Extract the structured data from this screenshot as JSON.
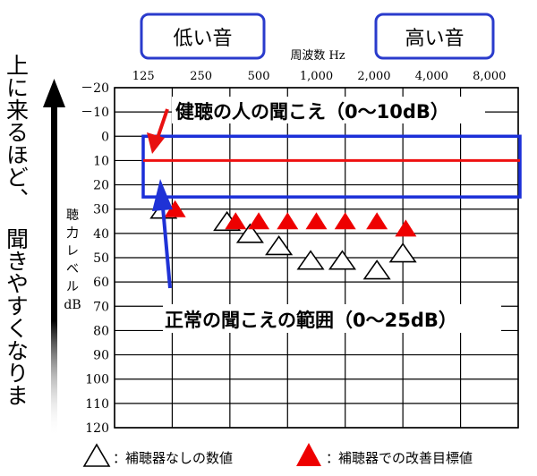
{
  "chart_data": {
    "type": "scatter",
    "x_axis_title": "周波数 Hz",
    "y_axis_title": [
      "聴",
      "力",
      "レ",
      "ベ",
      "ル",
      "dB"
    ],
    "x_categories": [
      "125",
      "250",
      "500",
      "1,000",
      "2,000",
      "4,000",
      "8,000"
    ],
    "y_ticks": [
      "－20",
      "－10",
      "0",
      "10",
      "20",
      "30",
      "40",
      "50",
      "60",
      "70",
      "80",
      "90",
      "100",
      "110",
      "120"
    ],
    "ylim": [
      -20,
      120
    ],
    "y_inverted": true,
    "grid": true,
    "low_label": "低い音",
    "high_label": "高い音",
    "side_label_top": "上に来るほど、",
    "side_label_bottom": "聞きやすくなりま",
    "normal_hearing_label": "健聴の人の聞こえ（0〜10dB）",
    "normal_hearing_level": 10,
    "normal_range_label": "正常の聞こえの範囲（0〜25dB）",
    "normal_range": [
      0,
      25
    ],
    "series": [
      {
        "name": "補聴器なしの数値",
        "marker": "triangle-open",
        "color": "#000000",
        "points": [
          {
            "x": 0.85,
            "y": 30
          },
          {
            "x": 1.95,
            "y": 35
          },
          {
            "x": 2.35,
            "y": 40
          },
          {
            "x": 2.85,
            "y": 45
          },
          {
            "x": 3.4,
            "y": 51
          },
          {
            "x": 3.95,
            "y": 51
          },
          {
            "x": 4.55,
            "y": 55
          },
          {
            "x": 5.0,
            "y": 48
          }
        ]
      },
      {
        "name": "補聴器での改善目標値",
        "marker": "triangle-filled",
        "color": "#ee0000",
        "points": [
          {
            "x": 1.05,
            "y": 30
          },
          {
            "x": 2.1,
            "y": 35
          },
          {
            "x": 2.5,
            "y": 35
          },
          {
            "x": 3.0,
            "y": 35
          },
          {
            "x": 3.5,
            "y": 35
          },
          {
            "x": 4.0,
            "y": 35
          },
          {
            "x": 4.55,
            "y": 35
          },
          {
            "x": 5.05,
            "y": 38
          }
        ]
      }
    ],
    "colors": {
      "range_box": "#1b2fd8",
      "reference_line": "#ee1111",
      "arrow_red": "#e81010",
      "arrow_blue": "#1f32d6",
      "label_box": "#2a3bcc"
    },
    "legend": {
      "placement": "bottom",
      "separator": "："
    }
  }
}
